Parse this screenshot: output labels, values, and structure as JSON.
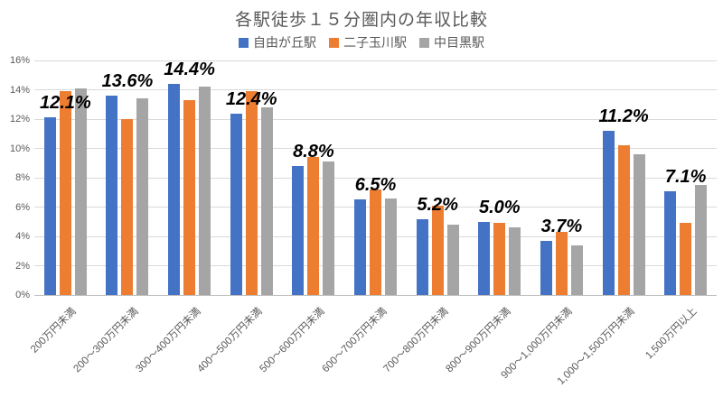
{
  "chart_data": {
    "type": "bar",
    "title": "各駅徒歩１５分圏内の年収比較",
    "categories": [
      "200万円未満",
      "200～300万円未満",
      "300～400万円未満",
      "400～500万円未満",
      "500～600万円未満",
      "600～700万円未満",
      "700～800万円未満",
      "800～900万円未満",
      "900～1,000万円未満",
      "1,000～1,500万円未満",
      "1,500万円以上"
    ],
    "series": [
      {
        "name": "自由が丘駅",
        "color": "#4472C4",
        "values": [
          12.1,
          13.6,
          14.4,
          12.4,
          8.8,
          6.5,
          5.2,
          5.0,
          3.7,
          11.2,
          7.1
        ]
      },
      {
        "name": "二子玉川駅",
        "color": "#ED7D31",
        "values": [
          13.9,
          12.0,
          13.3,
          13.9,
          9.4,
          7.2,
          6.1,
          4.9,
          4.3,
          10.2,
          4.9
        ]
      },
      {
        "name": "中目黒駅",
        "color": "#A5A5A5",
        "values": [
          14.1,
          13.4,
          14.2,
          12.8,
          9.1,
          6.6,
          4.8,
          4.6,
          3.4,
          9.6,
          7.5
        ]
      }
    ],
    "data_labels": {
      "labeled_series": "自由が丘駅",
      "values": [
        "12.1%",
        "13.6%",
        "14.4%",
        "12.4%",
        "8.8%",
        "6.5%",
        "5.2%",
        "5.0%",
        "3.7%",
        "11.2%",
        "7.1%"
      ]
    },
    "y_ticks": [
      "0%",
      "2%",
      "4%",
      "6%",
      "8%",
      "10%",
      "12%",
      "14%",
      "16%"
    ],
    "ylim": [
      0,
      16
    ],
    "grid": true,
    "legend_position": "top"
  }
}
